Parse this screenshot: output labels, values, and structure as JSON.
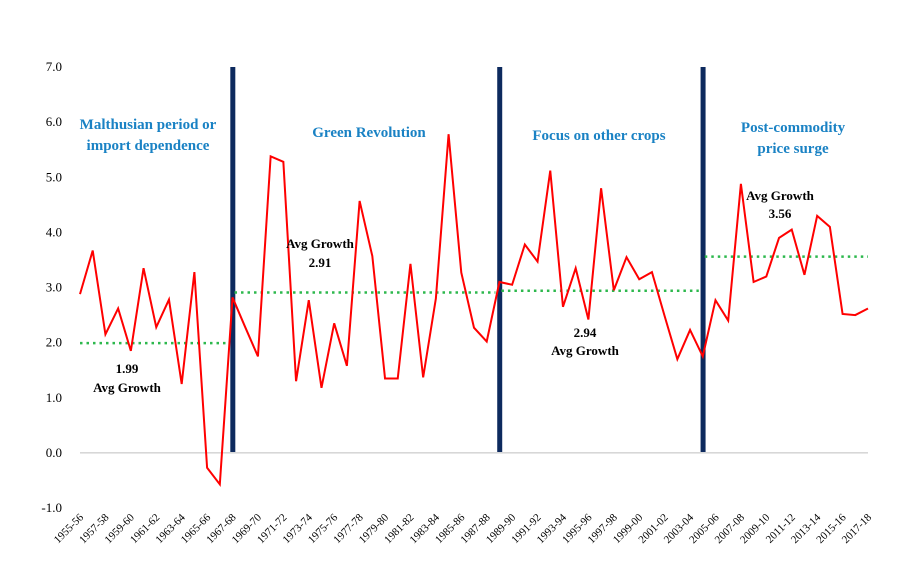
{
  "chart_data": {
    "type": "line",
    "title": "",
    "xlabel": "",
    "ylabel": "",
    "ylim": [
      -1.0,
      7.0
    ],
    "yticks": [
      "7.0",
      "6.0",
      "5.0",
      "4.0",
      "3.0",
      "2.0",
      "1.0",
      "0.0",
      "-1.0"
    ],
    "grid": false,
    "legend": "none",
    "x_labels": [
      "1955-56",
      "1957-58",
      "1959-60",
      "1961-62",
      "1963-64",
      "1965-66",
      "1967-68",
      "1969-70",
      "1971-72",
      "1973-74",
      "1975-76",
      "1977-78",
      "1979-80",
      "1981-82",
      "1983-84",
      "1985-86",
      "1987-88",
      "1989-90",
      "1991-92",
      "1993-94",
      "1995-96",
      "1997-98",
      "1999-00",
      "2001-02",
      "2003-04",
      "2005-06",
      "2007-08",
      "2009-10",
      "2011-12",
      "2013-14",
      "2015-16",
      "2017-18"
    ],
    "series": [
      {
        "color": "#ff0000",
        "values": [
          2.88,
          3.67,
          2.15,
          2.62,
          1.85,
          3.35,
          2.28,
          2.78,
          1.25,
          3.28,
          -0.27,
          -0.57,
          2.82,
          2.28,
          1.75,
          5.38,
          5.28,
          1.3,
          2.77,
          1.18,
          2.35,
          1.58,
          4.57,
          3.57,
          1.35,
          1.35,
          3.43,
          1.37,
          2.8,
          5.78,
          3.27,
          2.27,
          2.02,
          3.1,
          3.05,
          3.78,
          3.47,
          5.12,
          2.65,
          3.35,
          2.42,
          4.8,
          2.95,
          3.55,
          3.15,
          3.28,
          2.48,
          1.7,
          2.23,
          1.75,
          2.77,
          2.4,
          4.88,
          3.1,
          3.2,
          3.9,
          4.05,
          3.23,
          4.3,
          4.1,
          2.52,
          2.5,
          2.62
        ]
      }
    ],
    "period_dividers_after_index": [
      12,
      33,
      49
    ],
    "periods": [
      {
        "label_lines": [
          "Malthusian period or",
          "import dependence"
        ],
        "avg": 1.99,
        "avg_label": "1.99",
        "avg_text": "Avg Growth",
        "start_index": 0,
        "end_index": 12
      },
      {
        "label_lines": [
          "Green Revolution"
        ],
        "avg": 2.91,
        "avg_label": "2.91",
        "avg_text": "Avg Growth",
        "start_index": 12,
        "end_index": 33
      },
      {
        "label_lines": [
          "Focus on other crops"
        ],
        "avg": 2.94,
        "avg_label": "2.94",
        "avg_text": "Avg Growth",
        "start_index": 33,
        "end_index": 49
      },
      {
        "label_lines": [
          "Post-commodity",
          "price surge"
        ],
        "avg": 3.56,
        "avg_label": "3.56",
        "avg_text": "Avg Growth",
        "start_index": 49,
        "end_index": 62
      }
    ],
    "colors": {
      "line": "#ff0000",
      "divider": "#0d2a5e",
      "avg_line": "#2db84d",
      "period_label": "#1a82c4",
      "axis": "#bfbfbf"
    }
  }
}
